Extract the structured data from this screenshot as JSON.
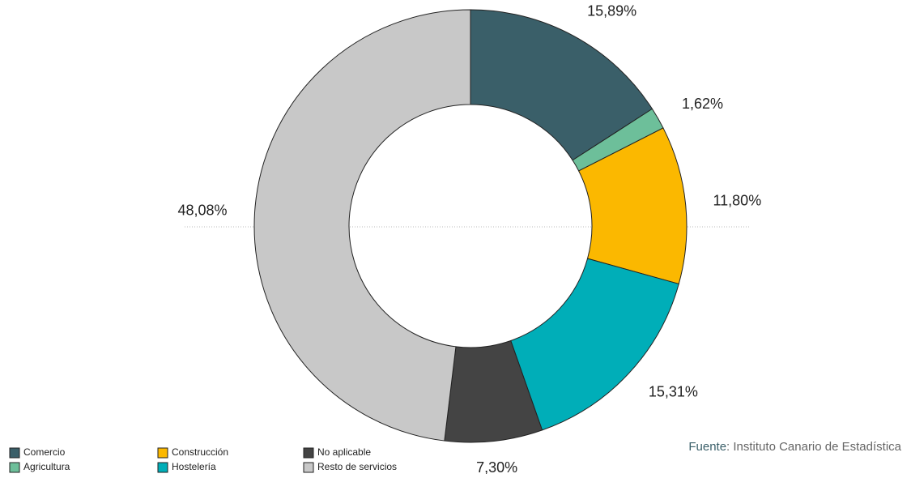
{
  "chart_data": {
    "type": "donut",
    "categories": [
      "Comercio",
      "Agricultura",
      "Construcción",
      "Hostelería",
      "No aplicable",
      "Resto de servicios"
    ],
    "values": [
      15.89,
      1.62,
      11.8,
      15.31,
      7.3,
      48.08
    ],
    "value_labels": [
      "15,89%",
      "1,62%",
      "11,80%",
      "15,31%",
      "7,30%",
      "48,08%"
    ],
    "colors": [
      "#3a5f69",
      "#6dbf9a",
      "#fbb800",
      "#00aeb8",
      "#444444",
      "#c8c8c8"
    ],
    "source": [
      "Fuente",
      ": Instituto Canario de Estadística"
    ]
  }
}
